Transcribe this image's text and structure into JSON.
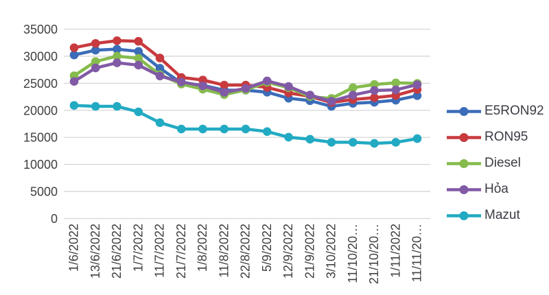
{
  "chart_data": {
    "type": "line",
    "title": "",
    "xlabel": "",
    "ylabel": "",
    "categories": [
      "1/6/2022",
      "13/6/2022",
      "21/6/2022",
      "1/7/2022",
      "11/7/2022",
      "21/7/2022",
      "1/8/2022",
      "11/8/2022",
      "22/8/2022",
      "5/9/2022",
      "12/9/2022",
      "21/9/2022",
      "3/10/2022",
      "11/10/20…",
      "21/10/20…",
      "1/11/2022",
      "11/11/20…"
    ],
    "series": [
      {
        "name": "E5RON92",
        "color": "#3B6CB8",
        "values": [
          30230,
          31110,
          31300,
          30890,
          27780,
          25070,
          24620,
          23720,
          23720,
          23350,
          22230,
          21780,
          20730,
          21290,
          21490,
          21870,
          22710
        ]
      },
      {
        "name": "RON95",
        "color": "#C83A3E",
        "values": [
          31570,
          32370,
          32870,
          32760,
          29670,
          26070,
          25600,
          24660,
          24660,
          24230,
          23210,
          22580,
          21440,
          22000,
          22340,
          22750,
          23860
        ]
      },
      {
        "name": "Diesel",
        "color": "#86BB4D",
        "values": [
          26390,
          29020,
          30010,
          29610,
          26590,
          24850,
          23900,
          22900,
          23750,
          25180,
          24180,
          22530,
          22200,
          24180,
          24780,
          25070,
          24980
        ]
      },
      {
        "name": "Hỏa",
        "color": "#815AA5",
        "values": [
          25340,
          27830,
          28780,
          28350,
          26340,
          25240,
          24530,
          23320,
          24050,
          25440,
          24410,
          22820,
          21680,
          22820,
          23660,
          23780,
          24740
        ]
      },
      {
        "name": "Mazut",
        "color": "#22AAC3",
        "values": [
          20900,
          20730,
          20730,
          19720,
          17710,
          16540,
          16540,
          16540,
          16540,
          16070,
          15030,
          14650,
          14090,
          14090,
          13890,
          14080,
          14760
        ]
      }
    ],
    "ylim": [
      0,
      35000
    ],
    "ytick_step": 5000,
    "yticks": [
      "0",
      "5000",
      "10000",
      "15000",
      "20000",
      "25000",
      "30000",
      "35000"
    ],
    "grid": true,
    "legend_position": "right"
  },
  "colors": {
    "gridline": "#D6D6D6",
    "axis_text": "#3F3F3F",
    "legend_text": "#3B3B44",
    "background": "#FFFFFF"
  }
}
